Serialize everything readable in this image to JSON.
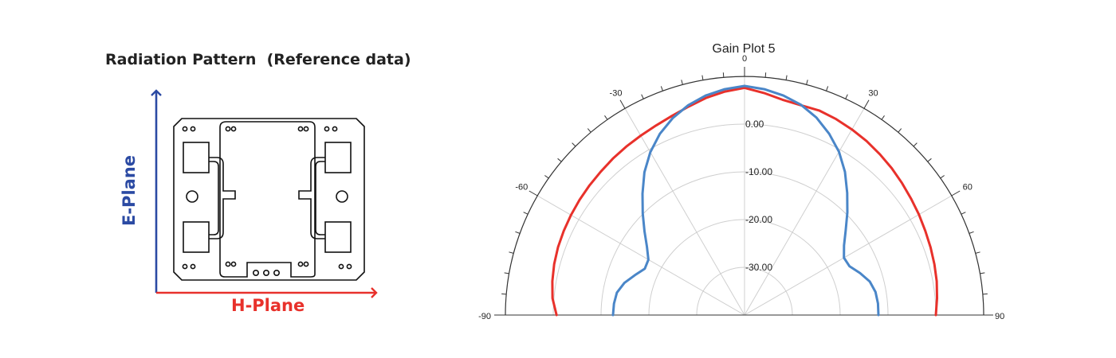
{
  "left_panel": {
    "title": "Radiation Pattern  (Reference data)",
    "e_plane_label": "E-Plane",
    "h_plane_label": "H-Plane",
    "colors": {
      "e_plane": "#2b4aa3",
      "h_plane": "#e8312b"
    }
  },
  "chart_data": {
    "type": "polar",
    "title": "Gain Plot 5",
    "angle_range": [
      -90,
      90
    ],
    "angle_labels": [
      "-90",
      "-60",
      "-30",
      "0",
      "30",
      "60",
      "90"
    ],
    "radial_range": [
      -40,
      10
    ],
    "radial_labels": [
      "0.00",
      "-10.00",
      "-20.00",
      "-30.00"
    ],
    "grid": true,
    "series": [
      {
        "color": "#e8312b",
        "theta": [
          -90,
          -85,
          -80,
          -75,
          -70,
          -65,
          -60,
          -55,
          -50,
          -45,
          -40,
          -35,
          -30,
          -25,
          -20,
          -15,
          -10,
          -5,
          0,
          5,
          10,
          15,
          20,
          25,
          30,
          35,
          40,
          45,
          50,
          55,
          60,
          65,
          70,
          75,
          80,
          85,
          90
        ],
        "r": [
          -0.7,
          0.3,
          0.8,
          1.2,
          1.5,
          1.7,
          1.9,
          2.1,
          2.3,
          2.5,
          2.8,
          3.1,
          3.4,
          3.8,
          4.4,
          5.2,
          6.2,
          7.0,
          7.6,
          6.7,
          5.8,
          5.5,
          5.6,
          5.3,
          4.9,
          4.5,
          4.0,
          3.5,
          3.0,
          2.5,
          2.1,
          1.7,
          1.4,
          1.1,
          0.8,
          0.4,
          0.0
        ]
      },
      {
        "color": "#4a86c8",
        "theta": [
          -90,
          -85,
          -80,
          -75,
          -70,
          -65,
          -60,
          -55,
          -50,
          -45,
          -40,
          -35,
          -30,
          -25,
          -20,
          -15,
          -10,
          -5,
          0,
          5,
          10,
          15,
          20,
          25,
          30,
          35,
          40,
          45,
          50,
          55,
          60,
          65,
          70,
          75,
          80,
          85,
          90
        ],
        "r": [
          -12.5,
          -12.6,
          -12.9,
          -14.0,
          -15.6,
          -17.0,
          -16.8,
          -15.1,
          -12.7,
          -9.9,
          -6.8,
          -3.5,
          -0.6,
          1.9,
          3.9,
          5.5,
          6.7,
          7.5,
          8.0,
          7.5,
          6.7,
          5.6,
          4.0,
          1.9,
          -0.5,
          -3.4,
          -6.6,
          -9.6,
          -12.4,
          -14.6,
          -16.0,
          -15.8,
          -14.3,
          -12.9,
          -12.2,
          -12.0,
          -12.0
        ]
      }
    ]
  }
}
